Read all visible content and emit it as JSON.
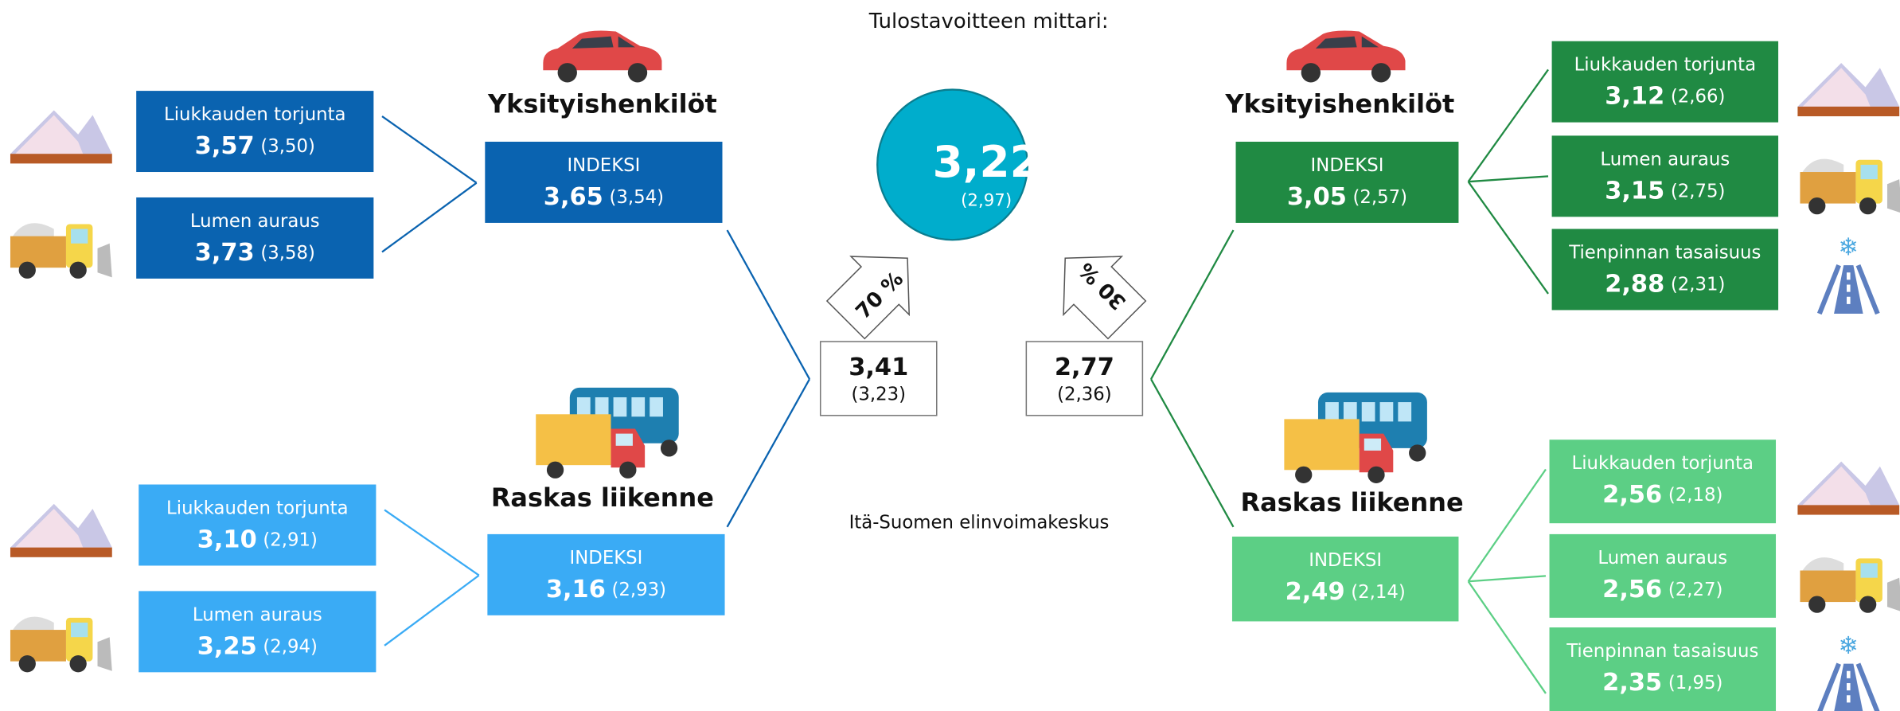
{
  "title": "Tulostavoitteen mittari:",
  "center": {
    "value": "3,22",
    "prev": "(2,97)"
  },
  "footer": "Itä-Suomen elinvoimakeskus",
  "left": {
    "weight": "70 %",
    "value": "3,41",
    "prev": "(3,23)",
    "groups": [
      {
        "title": "Yksityishenkilöt",
        "index_label": "INDEKSI",
        "value": "3,65",
        "prev": "(3,54)",
        "items": [
          {
            "label": "Liukkauden torjunta",
            "value": "3,57",
            "prev": "(3,50)"
          },
          {
            "label": "Lumen auraus",
            "value": "3,73",
            "prev": "(3,58)"
          }
        ]
      },
      {
        "title": "Raskas liikenne",
        "index_label": "INDEKSI",
        "value": "3,16",
        "prev": "(2,93)",
        "items": [
          {
            "label": "Liukkauden torjunta",
            "value": "3,10",
            "prev": "(2,91)"
          },
          {
            "label": "Lumen auraus",
            "value": "3,25",
            "prev": "(2,94)"
          }
        ]
      }
    ]
  },
  "right": {
    "weight": "30 %",
    "value": "2,77",
    "prev": "(2,36)",
    "groups": [
      {
        "title": "Yksityishenkilöt",
        "index_label": "INDEKSI",
        "value": "3,05",
        "prev": "(2,57)",
        "items": [
          {
            "label": "Liukkauden torjunta",
            "value": "3,12",
            "prev": "(2,66)"
          },
          {
            "label": "Lumen auraus",
            "value": "3,15",
            "prev": "(2,75)"
          },
          {
            "label": "Tienpinnan tasaisuus",
            "value": "2,88",
            "prev": "(2,31)"
          }
        ]
      },
      {
        "title": "Raskas liikenne",
        "index_label": "INDEKSI",
        "value": "2,49",
        "prev": "(2,14)",
        "items": [
          {
            "label": "Liukkauden torjunta",
            "value": "2,56",
            "prev": "(2,18)"
          },
          {
            "label": "Lumen auraus",
            "value": "2,56",
            "prev": "(2,27)"
          },
          {
            "label": "Tienpinnan tasaisuus",
            "value": "2,35",
            "prev": "(1,95)"
          }
        ]
      }
    ]
  }
}
